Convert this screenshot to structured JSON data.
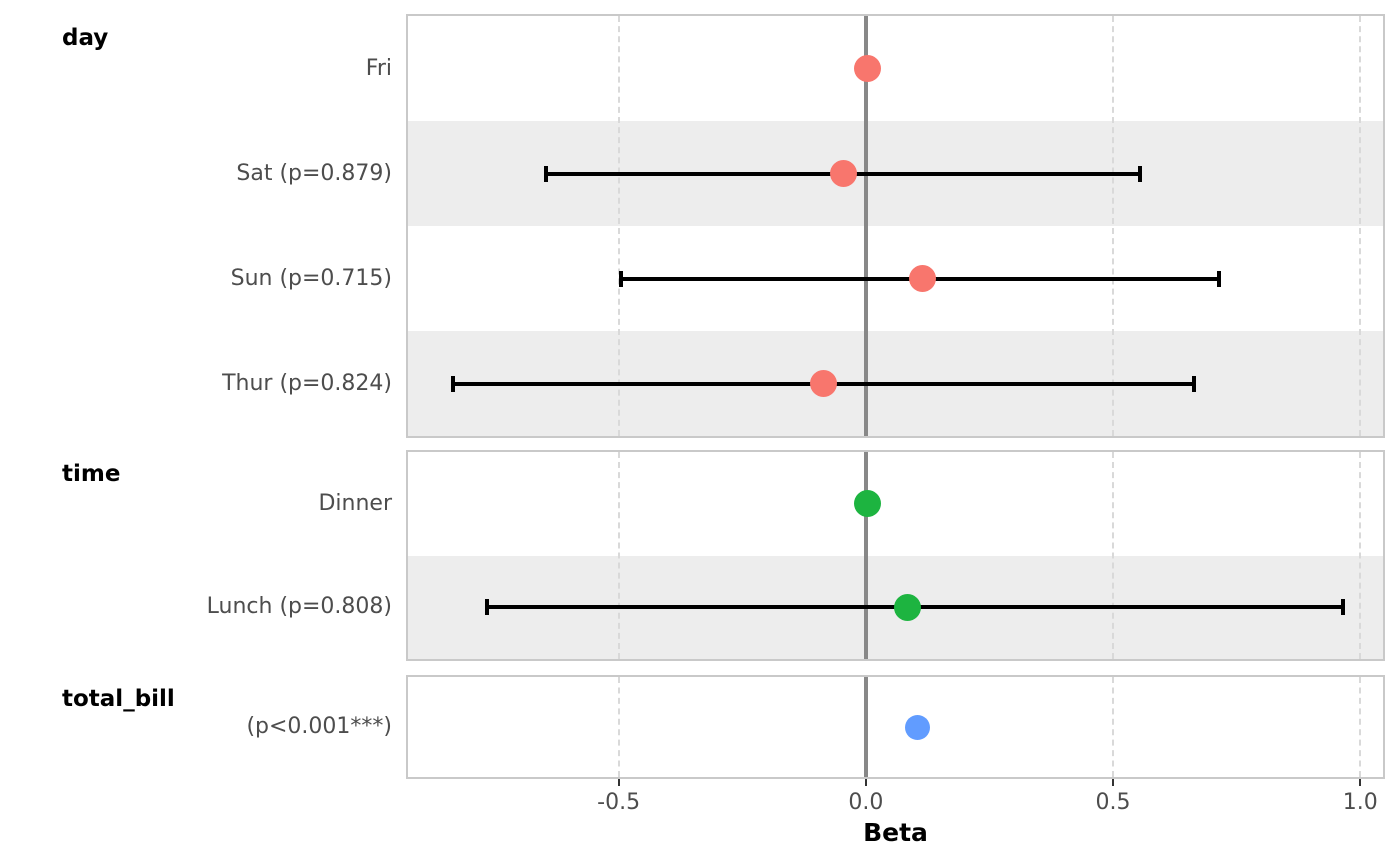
{
  "chart_data": {
    "type": "forest_plot",
    "title": "",
    "xlabel": "Beta",
    "x_ticks": [
      -0.5,
      0.0,
      0.5,
      1.0
    ],
    "x_tick_labels": [
      "-0.5",
      "0.0",
      "0.5",
      "1.0"
    ],
    "xlim": [
      -0.93,
      1.05
    ],
    "zero_line": 0,
    "dashed_gridlines": [
      -0.5,
      0.5,
      1.0
    ],
    "grid": "vertical-dashed",
    "legend": "none",
    "row_stripe_color": "#EDEDED",
    "zero_line_color": "#888888",
    "gridline_color": "#D9D9D9",
    "error_bar_color": "#000000",
    "panels": [
      {
        "group": "day",
        "point_color": "#F8766D",
        "rows": [
          {
            "label": "Fri",
            "estimate": 0.0,
            "ci_low": null,
            "ci_high": null,
            "reference": true
          },
          {
            "label": "Sat (p=0.879)",
            "estimate": -0.05,
            "ci_low": -0.65,
            "ci_high": 0.55,
            "p_value": "0.879"
          },
          {
            "label": "Sun (p=0.715)",
            "estimate": 0.11,
            "ci_low": -0.5,
            "ci_high": 0.71,
            "p_value": "0.715"
          },
          {
            "label": "Thur (p=0.824)",
            "estimate": -0.09,
            "ci_low": -0.84,
            "ci_high": 0.66,
            "p_value": "0.824"
          }
        ]
      },
      {
        "group": "time",
        "point_color": "#1DB440",
        "rows": [
          {
            "label": "Dinner",
            "estimate": 0.0,
            "ci_low": null,
            "ci_high": null,
            "reference": true
          },
          {
            "label": "Lunch (p=0.808)",
            "estimate": 0.08,
            "ci_low": -0.77,
            "ci_high": 0.96,
            "p_value": "0.808"
          }
        ]
      },
      {
        "group": "total_bill",
        "point_color": "#619CFF",
        "rows": [
          {
            "label": "(p<0.001***)",
            "estimate": 0.1,
            "ci_low": null,
            "ci_high": null,
            "p_value": "<0.001***"
          }
        ]
      }
    ]
  }
}
